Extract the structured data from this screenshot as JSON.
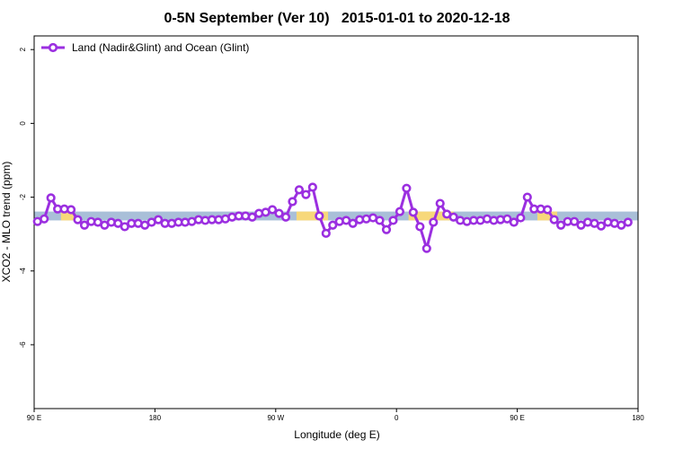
{
  "chart_data": {
    "type": "line",
    "title": "0-5N September (Ver 10)   2015-01-01 to 2020-12-18",
    "xlabel": "Longitude (deg E)",
    "ylabel": "XCO2 - MLO trend (ppm)",
    "xlim": [
      90,
      540
    ],
    "ylim": [
      -7.73,
      2.37
    ],
    "xticks": [
      {
        "value": 90,
        "label": "90 E"
      },
      180,
      {
        "value": 270,
        "label": "90 W"
      },
      {
        "value": 360,
        "label": "0"
      },
      {
        "value": 450,
        "label": "90 E"
      },
      {
        "value": 540,
        "label": "180"
      }
    ],
    "yticks": [
      2,
      0,
      -2,
      -4,
      -6
    ],
    "legend": "top-left",
    "bands": [
      {
        "color": "#a9bfd8",
        "xlim": [
          90,
          540
        ],
        "ylim": [
          -2.63,
          -2.39
        ]
      },
      {
        "color": "#f7d87a",
        "xlim": [
          110,
          119.5
        ],
        "ylim": [
          -2.63,
          -2.39
        ]
      },
      {
        "color": "#f7d87a",
        "xlim": [
          285.5,
          309
        ],
        "ylim": [
          -2.63,
          -2.39
        ]
      },
      {
        "color": "#f7d87a",
        "xlim": [
          369,
          402.7
        ],
        "ylim": [
          -2.63,
          -2.39
        ]
      },
      {
        "color": "#f7d87a",
        "xlim": [
          465,
          479.7
        ],
        "ylim": [
          -2.63,
          -2.39
        ]
      }
    ],
    "x": [
      92.5,
      97.5,
      102.5,
      107.5,
      112.5,
      117.5,
      122.5,
      127.5,
      132.5,
      137.5,
      142.5,
      147.5,
      152.5,
      157.5,
      162.5,
      167.5,
      172.5,
      177.5,
      182.5,
      187.5,
      192.5,
      197.5,
      202.5,
      207.5,
      212.5,
      217.5,
      222.5,
      227.5,
      232.5,
      237.5,
      242.5,
      247.5,
      252.5,
      257.5,
      262.5,
      267.5,
      272.5,
      277.5,
      282.5,
      287.5,
      292.5,
      297.5,
      302.5,
      307.5,
      312.5,
      317.5,
      322.5,
      327.5,
      332.5,
      337.5,
      342.5,
      347.5,
      352.5,
      357.5,
      362.5,
      367.5,
      372.5,
      377.5,
      382.5,
      387.5,
      392.5,
      397.5,
      402.5,
      407.5,
      412.5,
      417.5,
      422.5,
      427.5,
      432.5,
      437.5,
      442.5,
      447.5,
      452.5,
      457.5,
      462.5,
      467.5,
      472.5,
      477.5,
      482.5,
      487.5,
      492.5,
      497.5,
      502.5,
      507.5,
      512.5,
      517.5,
      522.5,
      527.5,
      532.5
    ],
    "series": [
      {
        "name": "Land (Nadir&Glint) and Ocean (Glint)",
        "color": "#9b2fe0",
        "values": [
          -2.66,
          -2.59,
          -2.02,
          -2.32,
          -2.32,
          -2.34,
          -2.61,
          -2.76,
          -2.66,
          -2.68,
          -2.76,
          -2.68,
          -2.71,
          -2.8,
          -2.71,
          -2.71,
          -2.76,
          -2.68,
          -2.61,
          -2.71,
          -2.71,
          -2.68,
          -2.68,
          -2.66,
          -2.61,
          -2.63,
          -2.61,
          -2.61,
          -2.59,
          -2.54,
          -2.51,
          -2.51,
          -2.54,
          -2.44,
          -2.41,
          -2.34,
          -2.44,
          -2.54,
          -2.12,
          -1.8,
          -1.93,
          -1.73,
          -2.51,
          -2.98,
          -2.76,
          -2.66,
          -2.63,
          -2.71,
          -2.61,
          -2.59,
          -2.56,
          -2.63,
          -2.88,
          -2.63,
          -2.39,
          -1.76,
          -2.41,
          -2.8,
          -3.39,
          -2.68,
          -2.17,
          -2.46,
          -2.54,
          -2.63,
          -2.66,
          -2.63,
          -2.63,
          -2.59,
          -2.63,
          -2.61,
          -2.59,
          -2.68,
          -2.56,
          -2.0,
          -2.32,
          -2.32,
          -2.34,
          -2.61,
          -2.76,
          -2.66,
          -2.66,
          -2.76,
          -2.68,
          -2.71,
          -2.78,
          -2.68,
          -2.71,
          -2.76,
          -2.68
        ]
      }
    ]
  }
}
